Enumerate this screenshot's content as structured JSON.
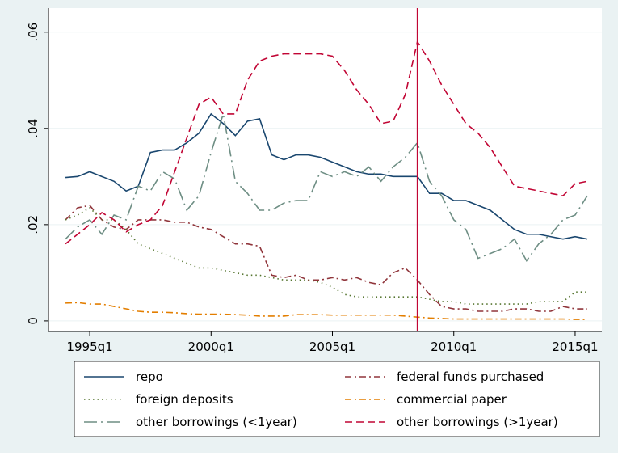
{
  "chart_data": {
    "type": "line",
    "x": [
      1994,
      1994.5,
      1995,
      1995.5,
      1996,
      1996.5,
      1997,
      1997.5,
      1998,
      1998.5,
      1999,
      1999.5,
      2000,
      2000.5,
      2001,
      2001.5,
      2002,
      2002.5,
      2003,
      2003.5,
      2004,
      2004.5,
      2005,
      2005.5,
      2006,
      2006.5,
      2007,
      2007.5,
      2008,
      2008.5,
      2009,
      2009.5,
      2010,
      2010.5,
      2011,
      2011.5,
      2012,
      2012.5,
      2013,
      2013.5,
      2014,
      2014.5,
      2015,
      2015.5
    ],
    "xlim": [
      1993.3,
      2016.1
    ],
    "xticks": [
      {
        "value": 1995,
        "label": "1995q1"
      },
      {
        "value": 2000,
        "label": "2000q1"
      },
      {
        "value": 2005,
        "label": "2005q1"
      },
      {
        "value": 2010,
        "label": "2010q1"
      },
      {
        "value": 2015,
        "label": "2015q1"
      }
    ],
    "ylim": [
      -0.0022,
      0.065
    ],
    "yticks": [
      0,
      {
        "value": 0.02,
        "label": ".02"
      },
      {
        "value": 0.04,
        "label": ".04"
      },
      {
        "value": 0.06,
        "label": ".06"
      }
    ],
    "grid": true,
    "vline": {
      "value": 2008.5,
      "color": "#c10534"
    },
    "series": [
      {
        "name": "repo",
        "color": "#1a476f",
        "dash": "solid",
        "values": [
          0.0298,
          0.03,
          0.031,
          0.03,
          0.029,
          0.027,
          0.028,
          0.035,
          0.0355,
          0.0355,
          0.037,
          0.039,
          0.043,
          0.041,
          0.0385,
          0.0415,
          0.042,
          0.0345,
          0.0335,
          0.0345,
          0.0345,
          0.034,
          0.033,
          0.032,
          0.031,
          0.0305,
          0.0305,
          0.03,
          0.03,
          0.03,
          0.0265,
          0.0265,
          0.025,
          0.025,
          0.024,
          0.023,
          0.021,
          0.019,
          0.018,
          0.018,
          0.0175,
          0.017,
          0.0175,
          0.017
        ]
      },
      {
        "name": "federal funds purchased",
        "color": "#90353b",
        "dash": "dashdot",
        "values": [
          0.021,
          0.0235,
          0.024,
          0.021,
          0.0195,
          0.019,
          0.021,
          0.021,
          0.021,
          0.0205,
          0.0205,
          0.0195,
          0.019,
          0.0175,
          0.016,
          0.016,
          0.0155,
          0.0095,
          0.009,
          0.0095,
          0.0085,
          0.0085,
          0.009,
          0.0085,
          0.009,
          0.008,
          0.0075,
          0.01,
          0.011,
          0.0085,
          0.0055,
          0.003,
          0.0025,
          0.0025,
          0.002,
          0.002,
          0.002,
          0.0025,
          0.0025,
          0.002,
          0.002,
          0.003,
          0.0025,
          0.0025
        ]
      },
      {
        "name": "foreign deposits",
        "color": "#55752f",
        "dash": "dot",
        "values": [
          0.021,
          0.022,
          0.0235,
          0.021,
          0.021,
          0.019,
          0.016,
          0.015,
          0.014,
          0.013,
          0.012,
          0.011,
          0.011,
          0.0105,
          0.01,
          0.0095,
          0.0095,
          0.009,
          0.0085,
          0.0085,
          0.0085,
          0.008,
          0.007,
          0.0055,
          0.005,
          0.005,
          0.005,
          0.005,
          0.005,
          0.005,
          0.0045,
          0.004,
          0.004,
          0.0035,
          0.0035,
          0.0035,
          0.0035,
          0.0035,
          0.0035,
          0.004,
          0.004,
          0.004,
          0.006,
          0.006
        ]
      },
      {
        "name": "commercial paper",
        "color": "#e37e00",
        "dash": "dashdot",
        "values": [
          0.0037,
          0.0038,
          0.0035,
          0.0035,
          0.003,
          0.0025,
          0.002,
          0.0018,
          0.0018,
          0.0017,
          0.0015,
          0.0014,
          0.0014,
          0.0014,
          0.0013,
          0.0012,
          0.001,
          0.001,
          0.001,
          0.0013,
          0.0013,
          0.0013,
          0.0012,
          0.0012,
          0.0012,
          0.0012,
          0.0012,
          0.0012,
          0.001,
          0.0008,
          0.0006,
          0.0005,
          0.0004,
          0.0004,
          0.0004,
          0.0004,
          0.0004,
          0.0004,
          0.0004,
          0.0004,
          0.0004,
          0.0004,
          0.0003,
          0.0003
        ]
      },
      {
        "name": "other borrowings (<1year)",
        "color": "#6e8e84",
        "dash": "longdashdot",
        "values": [
          0.017,
          0.0195,
          0.021,
          0.018,
          0.022,
          0.021,
          0.028,
          0.027,
          0.031,
          0.0295,
          0.023,
          0.026,
          0.035,
          0.043,
          0.029,
          0.0265,
          0.023,
          0.023,
          0.0245,
          0.025,
          0.025,
          0.031,
          0.03,
          0.031,
          0.03,
          0.032,
          0.029,
          0.032,
          0.034,
          0.037,
          0.029,
          0.026,
          0.021,
          0.019,
          0.013,
          0.014,
          0.015,
          0.017,
          0.0125,
          0.016,
          0.018,
          0.021,
          0.022,
          0.026
        ]
      },
      {
        "name": "other borrowings (>1year)",
        "color": "#c10534",
        "dash": "dash",
        "values": [
          0.016,
          0.018,
          0.02,
          0.0225,
          0.021,
          0.0185,
          0.02,
          0.021,
          0.024,
          0.031,
          0.038,
          0.045,
          0.0465,
          0.043,
          0.043,
          0.05,
          0.054,
          0.055,
          0.0555,
          0.0555,
          0.0555,
          0.0555,
          0.055,
          0.052,
          0.048,
          0.045,
          0.041,
          0.0415,
          0.047,
          0.058,
          0.054,
          0.049,
          0.045,
          0.041,
          0.039,
          0.036,
          0.032,
          0.028,
          0.0275,
          0.027,
          0.0265,
          0.026,
          0.0285,
          0.029
        ]
      }
    ]
  }
}
